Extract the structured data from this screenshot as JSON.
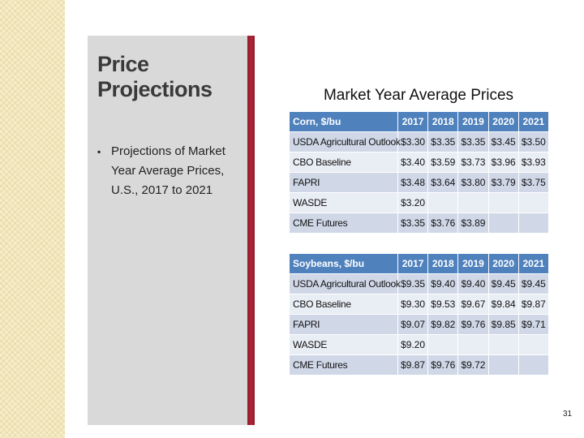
{
  "slide": {
    "title": "Price Projections",
    "bullet": "Projections of Market Year Average Prices, U.S., 2017 to 2021",
    "bullet_marker": "▪",
    "page_number": "31",
    "colors": {
      "header_blue": "#4f81bd",
      "row_odd": "#d0d8e8",
      "row_even": "#e9edf4",
      "panel_gray": "#d9d9d9",
      "accent_red": "#b2243a"
    }
  },
  "table_title": "Market Year Average Prices",
  "years": [
    "2017",
    "2018",
    "2019",
    "2020",
    "2021"
  ],
  "corn": {
    "header": "Corn, $/bu",
    "rows": [
      {
        "label": "USDA Agricultural Outlook",
        "values": [
          "$3.30",
          "$3.35",
          "$3.35",
          "$3.45",
          "$3.50"
        ]
      },
      {
        "label": "CBO Baseline",
        "values": [
          "$3.40",
          "$3.59",
          "$3.73",
          "$3.96",
          "$3.93"
        ]
      },
      {
        "label": "FAPRI",
        "values": [
          "$3.48",
          "$3.64",
          "$3.80",
          "$3.79",
          "$3.75"
        ]
      },
      {
        "label": "WASDE",
        "values": [
          "$3.20",
          "",
          "",
          "",
          ""
        ]
      },
      {
        "label": "CME Futures",
        "values": [
          "$3.35",
          "$3.76",
          "$3.89",
          "",
          ""
        ]
      }
    ]
  },
  "soybeans": {
    "header": "Soybeans, $/bu",
    "rows": [
      {
        "label": "USDA Agricultural Outlook",
        "values": [
          "$9.35",
          "$9.40",
          "$9.40",
          "$9.45",
          "$9.45"
        ]
      },
      {
        "label": "CBO Baseline",
        "values": [
          "$9.30",
          "$9.53",
          "$9.67",
          "$9.84",
          "$9.87"
        ]
      },
      {
        "label": "FAPRI",
        "values": [
          "$9.07",
          "$9.82",
          "$9.76",
          "$9.85",
          "$9.71"
        ]
      },
      {
        "label": "WASDE",
        "values": [
          "$9.20",
          "",
          "",
          "",
          ""
        ]
      },
      {
        "label": "CME Futures",
        "values": [
          "$9.87",
          "$9.76",
          "$9.72",
          "",
          ""
        ]
      }
    ]
  }
}
